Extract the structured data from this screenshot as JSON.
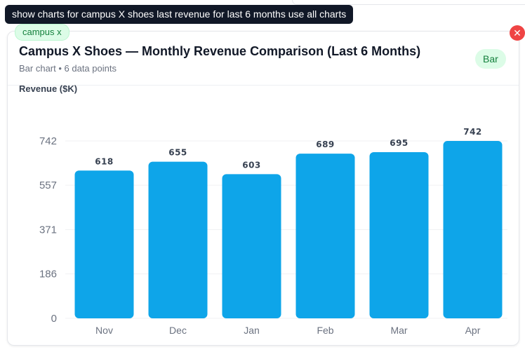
{
  "prompt": {
    "text": "show charts for campus X shoes last revenue for last 6 months use all charts"
  },
  "card": {
    "tag": "campus x",
    "title": "Campus X Shoes — Monthly Revenue Comparison (Last 6 Months)",
    "subtitle": "Bar chart • 6 data points",
    "type_badge": "Bar",
    "close_symbol": "✕"
  },
  "colors": {
    "bar": "#0ea5e9",
    "accent_green": "#15803d",
    "close_red": "#ef4444"
  },
  "chart_data": {
    "type": "bar",
    "categories": [
      "Nov",
      "Dec",
      "Jan",
      "Feb",
      "Mar",
      "Apr"
    ],
    "values": [
      618,
      655,
      603,
      689,
      695,
      742
    ],
    "title": "",
    "xlabel": "",
    "ylabel": "Revenue ($K)",
    "ylim": [
      0,
      742
    ],
    "yticks": [
      0,
      186,
      371,
      557,
      742
    ],
    "grid": true,
    "legend": "none",
    "data_labels": true
  }
}
